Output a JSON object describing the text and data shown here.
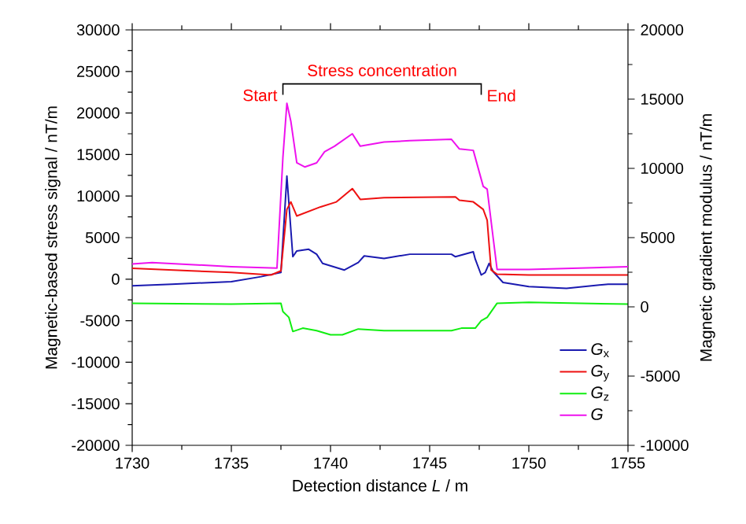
{
  "chart_data": {
    "type": "line",
    "xlabel": "Detection distance *L* / m",
    "ylabel": "Magnetic-based stress signal / nT/m",
    "y2label": "Magnetic gradient modulus / nT/m",
    "xlim": [
      1730,
      1755
    ],
    "xticks": [
      1730,
      1735,
      1740,
      1745,
      1750,
      1755
    ],
    "ylim": [
      -20000,
      30000
    ],
    "yticks": [
      -20000,
      -15000,
      -10000,
      -5000,
      0,
      5000,
      10000,
      15000,
      20000,
      25000,
      30000
    ],
    "y2lim": [
      -10000,
      20000
    ],
    "y2ticks": [
      -10000,
      -5000,
      0,
      5000,
      10000,
      15000,
      20000
    ],
    "grid": false,
    "legend": "bottom right",
    "marker": "none",
    "line_style": "solid",
    "annotations": [
      "Stress concentration",
      "Start",
      "End"
    ],
    "series": [
      {
        "name": "*G*$_{x}$",
        "color": "#1a1ab0",
        "x": [
          1730,
          1732,
          1735,
          1736.5,
          1737.5,
          1737.8,
          1738.1,
          1738.3,
          1738.9,
          1739.3,
          1739.6,
          1740.7,
          1741.4,
          1741.7,
          1742.7,
          1744,
          1746.1,
          1746.3,
          1747.2,
          1747.3,
          1747.6,
          1747.8,
          1748.0,
          1748.2,
          1748.7,
          1750,
          1751.9,
          1754,
          1755
        ],
        "values": [
          -800,
          -600,
          -300,
          300,
          800,
          12400,
          2700,
          3400,
          3600,
          3000,
          1900,
          1100,
          2000,
          2800,
          2500,
          3000,
          3000,
          2700,
          3300,
          2400,
          500,
          800,
          1900,
          900,
          -400,
          -900,
          -1100,
          -600,
          -600
        ]
      },
      {
        "name": "*G*$_{y}$",
        "color": "#ee1111",
        "x": [
          1730,
          1733,
          1735,
          1737,
          1737.5,
          1737.8,
          1738.0,
          1738.3,
          1739.5,
          1740.3,
          1741.1,
          1741.5,
          1742.7,
          1746.3,
          1746.5,
          1747.2,
          1747.7,
          1747.9,
          1748.1,
          1748.4,
          1750,
          1755
        ],
        "values": [
          1300,
          1000,
          800,
          500,
          1000,
          8400,
          9300,
          7600,
          8700,
          9300,
          10900,
          9600,
          9800,
          9900,
          9500,
          9300,
          8400,
          7100,
          1100,
          600,
          500,
          500
        ]
      },
      {
        "name": "*G*$_{z}$",
        "color": "#11ee11",
        "x": [
          1730,
          1735,
          1737.5,
          1737.6,
          1737.9,
          1738.1,
          1738.6,
          1739.3,
          1740,
          1740.6,
          1741.4,
          1742.7,
          1746.1,
          1746.6,
          1747.3,
          1747.6,
          1747.9,
          1748.4,
          1750,
          1755
        ],
        "values": [
          -2900,
          -3000,
          -2900,
          -3900,
          -4600,
          -6300,
          -5900,
          -6200,
          -6700,
          -6700,
          -6000,
          -6200,
          -6200,
          -5900,
          -5900,
          -5000,
          -4600,
          -2900,
          -2800,
          -3000
        ]
      },
      {
        "name": "*G*",
        "color": "#ee11ee",
        "axis": "y2",
        "x": [
          1730,
          1731,
          1735,
          1737.3,
          1737.6,
          1737.8,
          1738.0,
          1738.3,
          1738.7,
          1739.3,
          1739.7,
          1740.2,
          1741.1,
          1741.5,
          1742.7,
          1744,
          1746.1,
          1746.5,
          1747.2,
          1747.7,
          1747.9,
          1748.2,
          1748.4,
          1750,
          1755
        ],
        "values": [
          3100,
          3200,
          2900,
          2800,
          10800,
          14700,
          13400,
          10400,
          10100,
          10400,
          11200,
          11600,
          12500,
          11600,
          11900,
          12000,
          12100,
          11400,
          11300,
          8700,
          8500,
          5000,
          2700,
          2700,
          2900
        ]
      }
    ]
  }
}
